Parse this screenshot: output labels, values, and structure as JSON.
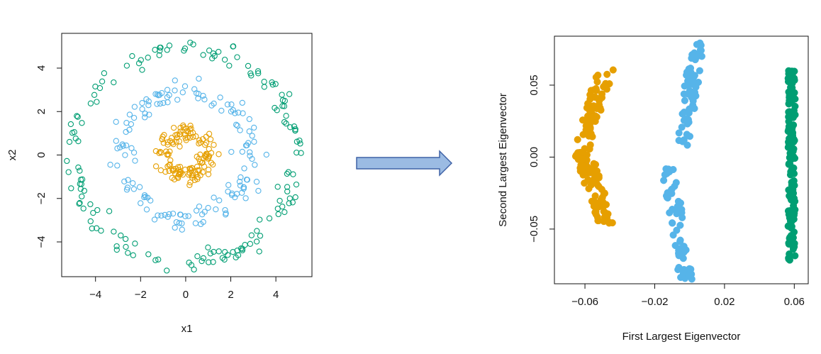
{
  "colors": {
    "orange": "#e69f00",
    "blue": "#56b4e9",
    "green": "#009e73",
    "axis": "#111111",
    "arrow_fill": "#9bbbe3",
    "arrow_stroke": "#3f62a6"
  },
  "arrow_icon": "right-arrow-icon",
  "chart_data": [
    {
      "type": "scatter",
      "marker": "open-circle",
      "xlabel": "x1",
      "ylabel": "x2",
      "xlim": [
        -5.5,
        5.6
      ],
      "ylim": [
        -5.6,
        5.6
      ],
      "xticks": [
        -4,
        -2,
        0,
        2,
        4
      ],
      "yticks": [
        -4,
        -2,
        0,
        2,
        4
      ],
      "xtick_labels": [
        "−4",
        "−2",
        "0",
        "2",
        "4"
      ],
      "ytick_labels": [
        "−4",
        "−2",
        "0",
        "2",
        "4"
      ],
      "grid": false,
      "series": [
        {
          "color": "orange",
          "radius_mean": 1.0,
          "radius_sd": 0.22,
          "n": 130
        },
        {
          "color": "blue",
          "radius_mean": 2.9,
          "radius_sd": 0.25,
          "n": 145
        },
        {
          "color": "green",
          "radius_mean": 4.9,
          "radius_sd": 0.22,
          "n": 160
        }
      ]
    },
    {
      "type": "scatter",
      "marker": "filled-circle",
      "xlabel": "First Largest Eigenvector",
      "ylabel": "Second Largest Eigenvector",
      "xlim": [
        -0.0775,
        0.068
      ],
      "ylim": [
        -0.088,
        0.084
      ],
      "xticks": [
        -0.06,
        -0.02,
        0.02,
        0.06
      ],
      "yticks": [
        -0.05,
        0.0,
        0.05
      ],
      "xtick_labels": [
        "−0.06",
        "−0.02",
        "0.02",
        "0.06"
      ],
      "ytick_labels": [
        "−0.05",
        "0.00",
        "0.05"
      ],
      "grid": false,
      "series": [
        {
          "color": "orange",
          "x_center": -0.058,
          "x_amp": 0.012,
          "y_range": [
            -0.046,
            0.061
          ],
          "n": 140
        },
        {
          "color": "blue",
          "x_center": 0.001,
          "x_amp": 0.012,
          "y_range": [
            -0.085,
            0.08
          ],
          "n": 150
        },
        {
          "color": "green",
          "x_center": 0.0585,
          "x_amp": 0.0025,
          "y_range": [
            -0.072,
            0.06
          ],
          "n": 150
        }
      ]
    }
  ]
}
